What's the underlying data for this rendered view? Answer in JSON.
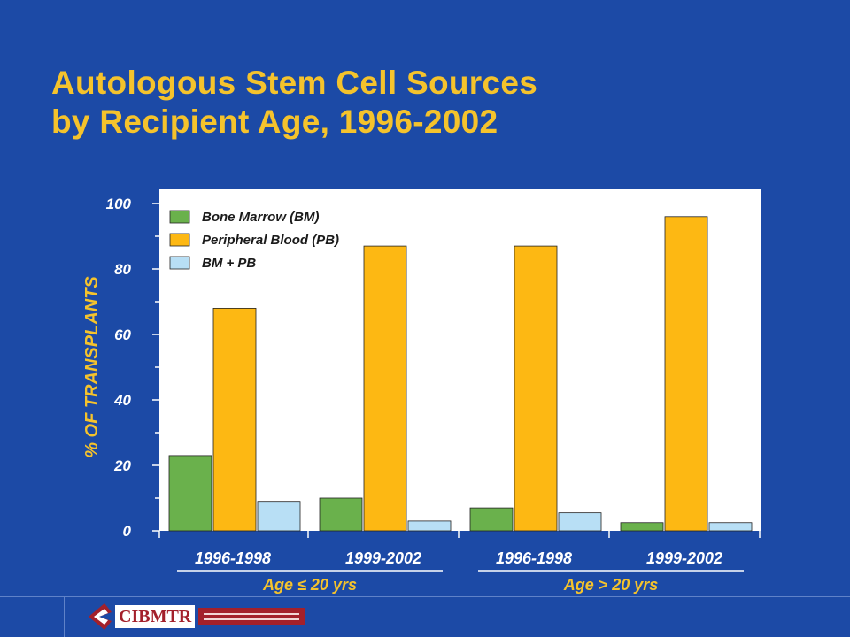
{
  "title": {
    "line1": "Autologous Stem Cell Sources",
    "line2": "by Recipient Age, 1996-2002"
  },
  "logo": {
    "text": "CIBMTR"
  },
  "colors": {
    "background": "#1c4aa6",
    "title": "#f5c32c",
    "plot_bg": "#ffffff",
    "bone_marrow": "#6ab14c",
    "peripheral_blood": "#fdb813",
    "bm_pb": "#b8dff5",
    "axis_text": "#f5c32c",
    "tick_text": "#ffffff"
  },
  "chart_data": {
    "type": "bar",
    "ylabel": "% OF TRANSPLANTS",
    "ylim": [
      0,
      100
    ],
    "yticks": [
      0,
      20,
      40,
      60,
      80,
      100
    ],
    "categories": [
      "1996-1998",
      "1999-2002",
      "1996-1998",
      "1999-2002"
    ],
    "groups": [
      {
        "label": "Age ≤ 20 yrs",
        "categories": [
          0,
          1
        ]
      },
      {
        "label": "Age > 20 yrs",
        "categories": [
          2,
          3
        ]
      }
    ],
    "series": [
      {
        "name": "Bone Marrow (BM)",
        "color": "#6ab14c",
        "values": [
          23,
          10,
          7,
          2.5
        ]
      },
      {
        "name": "Peripheral Blood (PB)",
        "color": "#fdb813",
        "values": [
          68,
          87,
          87,
          96
        ]
      },
      {
        "name": "BM + PB",
        "color": "#b8dff5",
        "values": [
          9,
          3,
          5.5,
          2.5
        ]
      }
    ],
    "legend_position": "top-left",
    "grid": false
  }
}
